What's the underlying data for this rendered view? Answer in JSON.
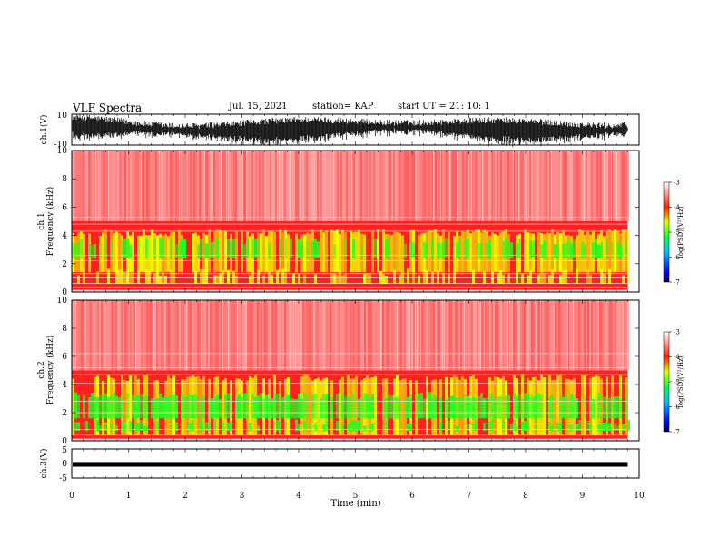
{
  "header": {
    "title": "VLF Spectra",
    "date": "Jul. 15, 2021",
    "station": "station= KAP",
    "start": "start  UT  =   21: 10: 1"
  },
  "chart_data": [
    {
      "type": "line",
      "panel": "ch1-waveform",
      "ylabel": "ch.1(V)",
      "ylim": [
        -10,
        10
      ],
      "yticks": [
        "10",
        "-10"
      ],
      "xlim": [
        0,
        10
      ]
    },
    {
      "type": "heatmap",
      "panel": "ch1-spectrogram",
      "ylabel": "Frequency (kHz)",
      "ylabel2": "ch.1",
      "ylim": [
        0,
        10
      ],
      "yticks": [
        "0",
        "2",
        "4",
        "6",
        "8",
        "10"
      ],
      "xlim": [
        0,
        10
      ],
      "data_end_min": 9.8,
      "colorbar": {
        "label": "log(PSD)(V²/Hz)",
        "range": [
          -7,
          -3
        ],
        "ticks": [
          "-3",
          "-4",
          "-5",
          "-6",
          "-7"
        ]
      }
    },
    {
      "type": "heatmap",
      "panel": "ch2-spectrogram",
      "ylabel": "Frequency (kHz)",
      "ylabel2": "ch.2",
      "ylim": [
        0,
        10
      ],
      "yticks": [
        "0",
        "2",
        "4",
        "6",
        "8",
        "10"
      ],
      "xlim": [
        0,
        10
      ],
      "data_end_min": 9.8,
      "colorbar": {
        "label": "log(PSD)(V²/Hz)",
        "range": [
          -7,
          -3
        ],
        "ticks": [
          "-3",
          "-4",
          "-5",
          "-6",
          "-7"
        ]
      }
    },
    {
      "type": "line",
      "panel": "ch3-waveform",
      "ylabel": "ch.3(V)",
      "ylim": [
        -5,
        5
      ],
      "yticks": [
        "5",
        "0",
        "-5"
      ],
      "xlim": [
        0,
        10
      ],
      "xlabel": "Time (min)",
      "xticks": [
        "0",
        "1",
        "2",
        "3",
        "4",
        "5",
        "6",
        "7",
        "8",
        "9",
        "10"
      ]
    }
  ],
  "colors": {
    "waveform": "#000000",
    "background_red": "#ff2020",
    "band_yellow": "#f0ff00",
    "band_green": "#20ff20"
  }
}
